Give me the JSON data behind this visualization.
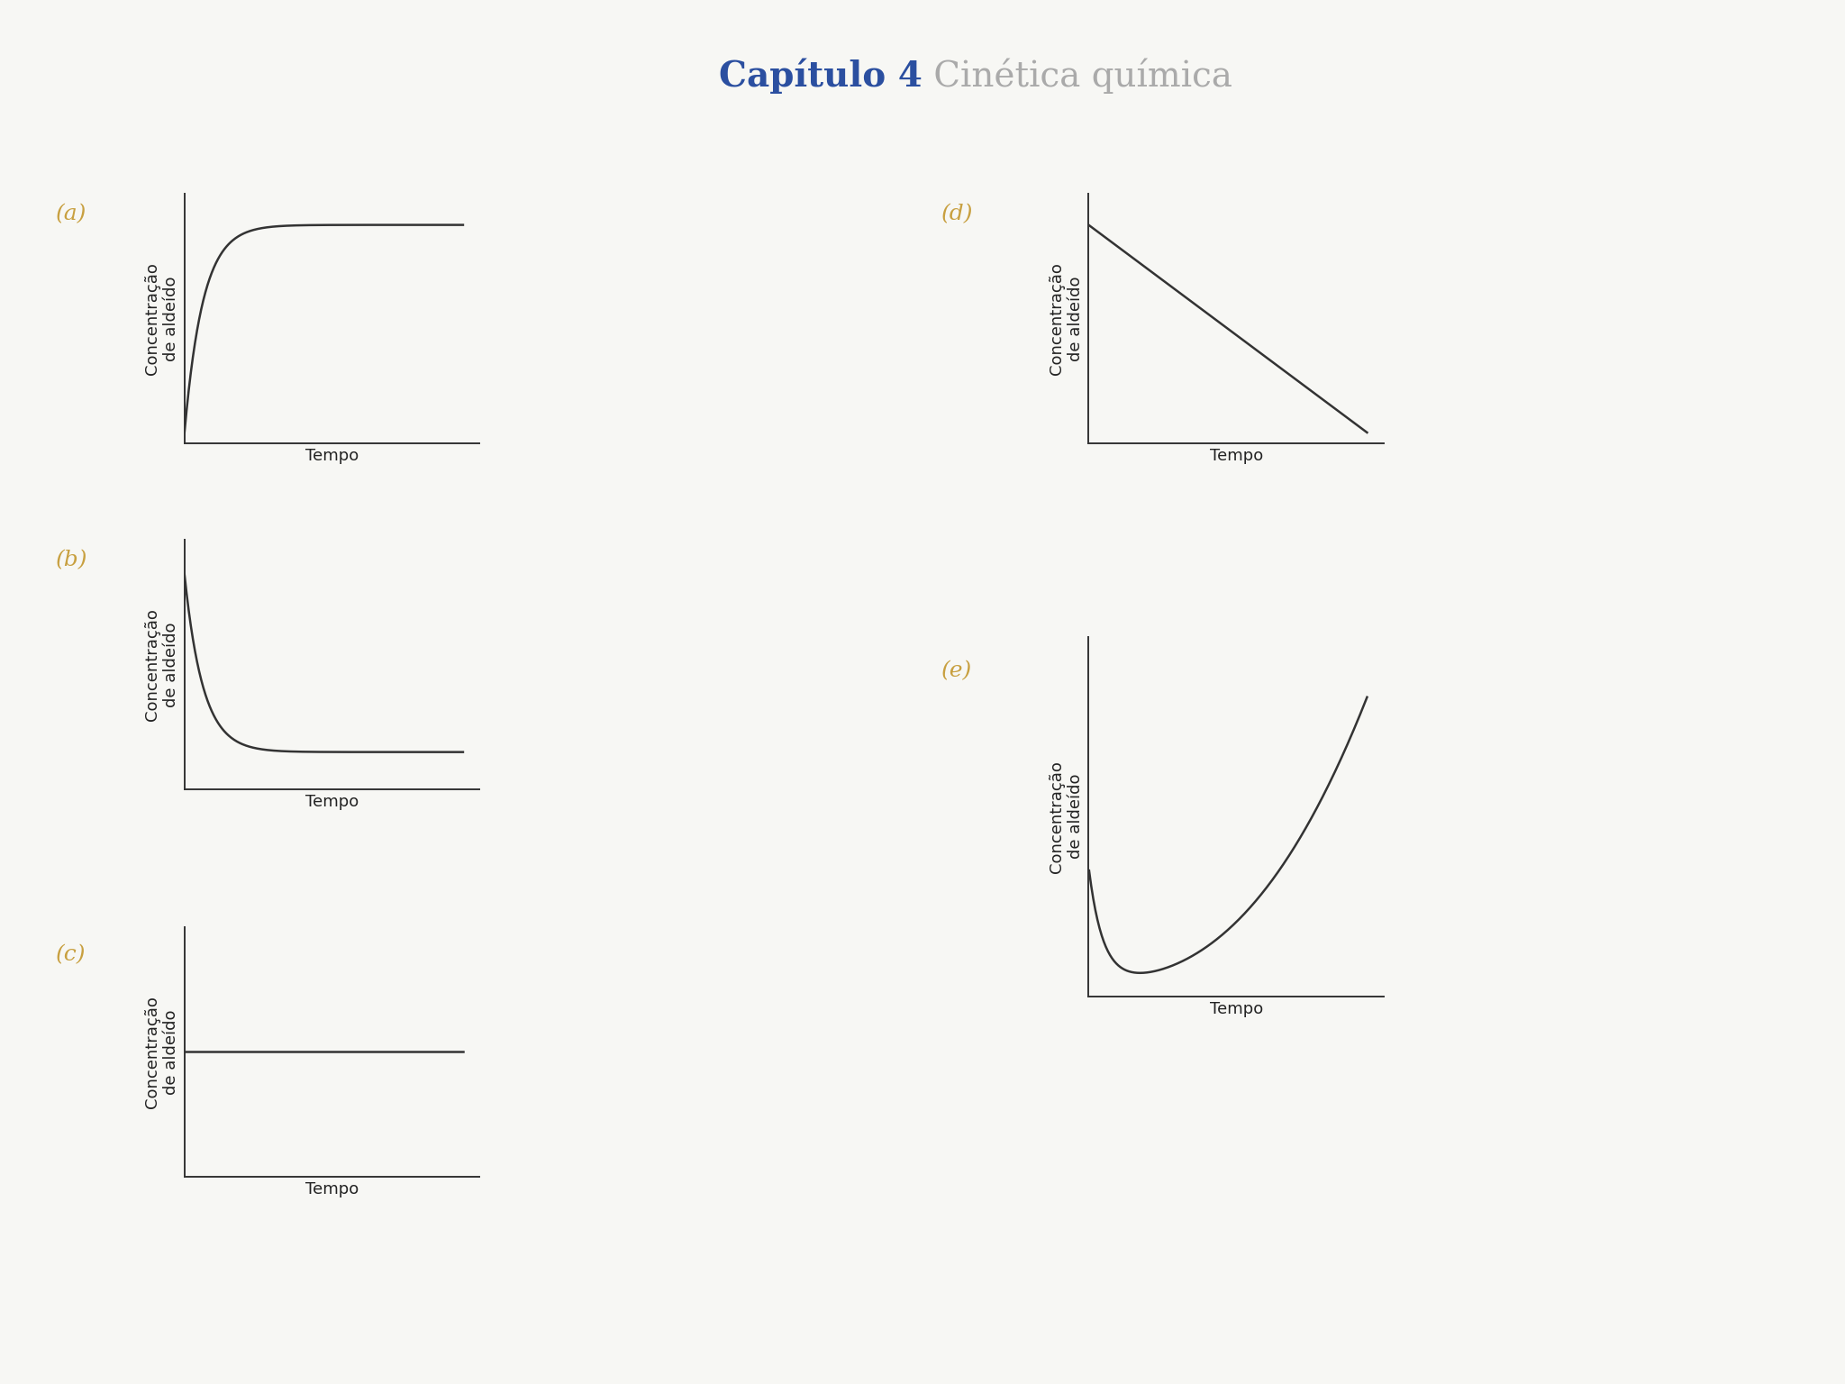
{
  "title_part1": "Capítulo 4",
  "title_part2": " Cinética química",
  "title_color1": "#2b4fa0",
  "title_color2": "#aaaaaa",
  "title_fontsize": 28,
  "ylabel_line1": "Concentração",
  "ylabel_line2": "de aldeído",
  "xlabel": "Tempo",
  "label_fontsize": 13,
  "label_color": "#222222",
  "panel_label_color": "#c8a040",
  "panel_label_fontsize": 18,
  "line_color": "#333333",
  "line_width": 1.8,
  "axis_color": "#333333",
  "background_color": "#f7f7f4"
}
